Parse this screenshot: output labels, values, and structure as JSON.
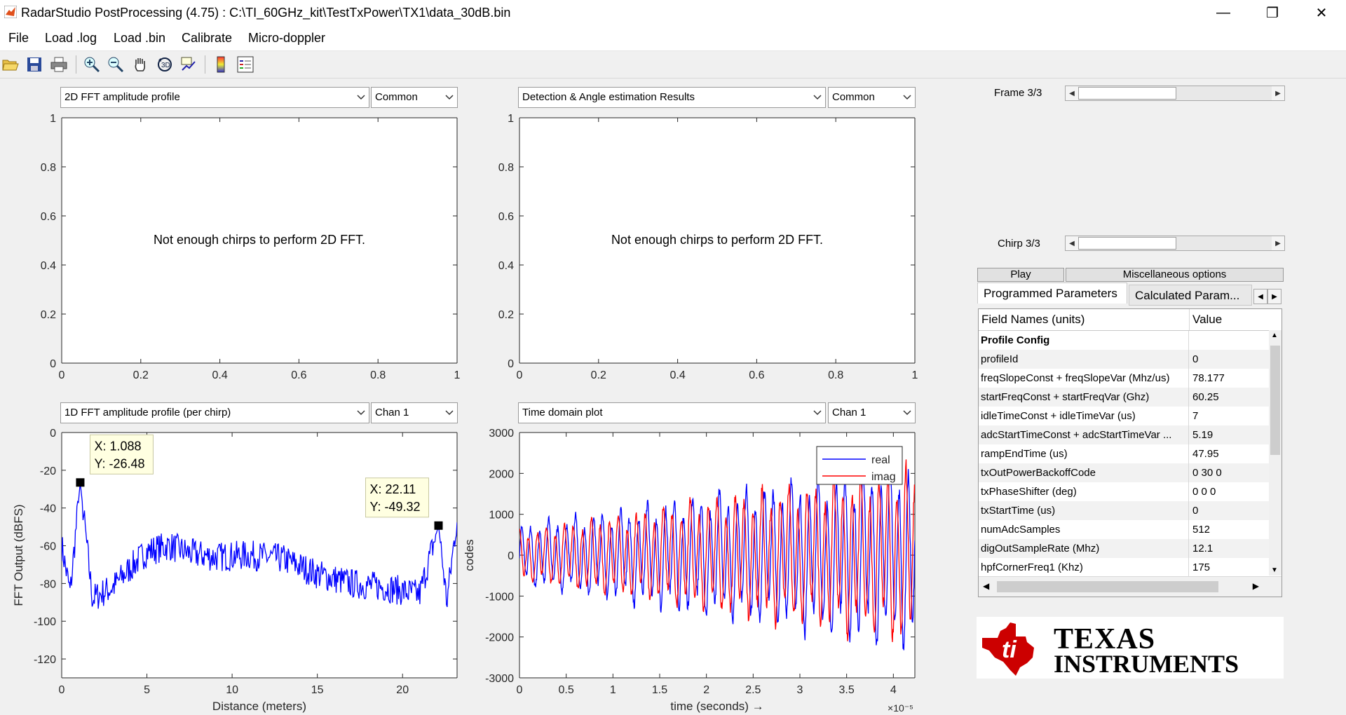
{
  "window": {
    "title": "RadarStudio PostProcessing (4.75)  : C:\\TI_60GHz_kit\\TestTxPower\\TX1\\data_30dB.bin",
    "minimize_glyph": "—",
    "maximize_glyph": "❐",
    "close_glyph": "✕"
  },
  "menu": [
    {
      "label": "File"
    },
    {
      "label": "Load .log"
    },
    {
      "label": "Load .bin"
    },
    {
      "label": "Calibrate"
    },
    {
      "label": "Micro-doppler"
    }
  ],
  "toolbar": {
    "icons": [
      "open-folder-icon",
      "save-icon",
      "print-icon",
      "zoom-in-icon",
      "zoom-out-icon",
      "pan-hand-icon",
      "rotate-3d-icon",
      "data-cursor-icon",
      "colorbar-icon",
      "legend-icon"
    ]
  },
  "panels": {
    "top_left": {
      "dropdown": "2D FFT amplitude profile",
      "dropdown2": "Common",
      "message": "Not enough chirps to perform 2D FFT."
    },
    "top_right": {
      "dropdown": "Detection & Angle estimation Results",
      "dropdown2": "Common",
      "message": "Not enough chirps to perform 2D FFT."
    },
    "bottom_left": {
      "dropdown": "1D FFT amplitude profile (per chirp)",
      "dropdown2": "Chan 1"
    },
    "bottom_right": {
      "dropdown": "Time domain plot",
      "dropdown2": "Chan 1"
    }
  },
  "controls": {
    "frame_label": "Frame 3/3",
    "frame_slider_value": 3,
    "frame_slider_max": 3,
    "chirp_label": "Chirp 3/3",
    "chirp_slider_value": 3,
    "chirp_slider_max": 3,
    "play_button": "Play",
    "misc_button": "Miscellaneous options"
  },
  "tabs": [
    {
      "label": "Programmed Parameters",
      "active": true
    },
    {
      "label": "Calculated Param..."
    }
  ],
  "table": {
    "headers": [
      "Field Names   (units)",
      "Value"
    ],
    "rows": [
      {
        "name": "Profile Config",
        "value": "",
        "section": true
      },
      {
        "name": "profileId",
        "value": "0"
      },
      {
        "name": "freqSlopeConst + freqSlopeVar (Mhz/us)",
        "value": "78.177"
      },
      {
        "name": "startFreqConst + startFreqVar (Ghz)",
        "value": "60.25"
      },
      {
        "name": "idleTimeConst + idleTimeVar (us)",
        "value": "7"
      },
      {
        "name": "adcStartTimeConst + adcStartTimeVar ...",
        "value": "5.19"
      },
      {
        "name": "rampEndTime (us)",
        "value": "47.95"
      },
      {
        "name": "txOutPowerBackoffCode",
        "value": "0 30 0"
      },
      {
        "name": "txPhaseShifter (deg)",
        "value": "0 0 0"
      },
      {
        "name": "txStartTime (us)",
        "value": "0"
      },
      {
        "name": "numAdcSamples",
        "value": "512"
      },
      {
        "name": "digOutSampleRate (Mhz)",
        "value": "12.1"
      },
      {
        "name": "hpfCornerFreq1 (Khz)",
        "value": "175"
      }
    ]
  },
  "logo": {
    "line1": "TEXAS",
    "line2": "INSTRUMENTS",
    "color": "#cc0000"
  },
  "chart_data": [
    {
      "type": "line",
      "title": "",
      "xlim": [
        0,
        1
      ],
      "ylim": [
        0,
        1
      ],
      "xticks": [
        "0",
        "0.2",
        "0.4",
        "0.6",
        "0.8",
        "1"
      ],
      "yticks": [
        "0",
        "0.2",
        "0.4",
        "0.6",
        "0.8",
        "1"
      ],
      "series": []
    },
    {
      "type": "line",
      "title": "",
      "xlim": [
        0,
        1
      ],
      "ylim": [
        0,
        1
      ],
      "xticks": [
        "0",
        "0.2",
        "0.4",
        "0.6",
        "0.8",
        "1"
      ],
      "yticks": [
        "0",
        "0.2",
        "0.4",
        "0.6",
        "0.8",
        "1"
      ],
      "series": []
    },
    {
      "type": "line",
      "xlabel": "Distance (meters)",
      "ylabel": "FFT Output (dBFS)",
      "xlim": [
        0,
        23.2
      ],
      "ylim": [
        -130,
        0
      ],
      "xticks": [
        "0",
        "5",
        "10",
        "15",
        "20"
      ],
      "xtick_values": [
        0,
        5,
        10,
        15,
        20
      ],
      "yticks": [
        "0",
        "-20",
        "-40",
        "-60",
        "-80",
        "-100",
        "-120"
      ],
      "ytick_values": [
        0,
        -20,
        -40,
        -60,
        -80,
        -100,
        -120
      ],
      "color": "#0000ff",
      "datatips": [
        {
          "x": 1.088,
          "y": -26.48,
          "label_x": "X: 1.088",
          "label_y": "Y: -26.48"
        },
        {
          "x": 22.11,
          "y": -49.32,
          "label_x": "X: 22.11",
          "label_y": "Y: -49.32"
        }
      ],
      "envelope": [
        {
          "x": 0,
          "y": -60
        },
        {
          "x": 0.5,
          "y": -85
        },
        {
          "x": 1.088,
          "y": -26.48
        },
        {
          "x": 1.8,
          "y": -88
        },
        {
          "x": 3,
          "y": -82
        },
        {
          "x": 4,
          "y": -72
        },
        {
          "x": 5,
          "y": -63
        },
        {
          "x": 6.3,
          "y": -60
        },
        {
          "x": 7.5,
          "y": -64
        },
        {
          "x": 9,
          "y": -66
        },
        {
          "x": 11,
          "y": -65
        },
        {
          "x": 13,
          "y": -67
        },
        {
          "x": 15,
          "y": -75
        },
        {
          "x": 17,
          "y": -80
        },
        {
          "x": 19,
          "y": -82
        },
        {
          "x": 21,
          "y": -86
        },
        {
          "x": 22.11,
          "y": -49.32
        },
        {
          "x": 22.6,
          "y": -90
        },
        {
          "x": 23.2,
          "y": -45
        }
      ]
    },
    {
      "type": "line",
      "xlabel": "time  (seconds) →",
      "ylabel": "codes",
      "x_exponent": "×10⁻⁵",
      "xlim": [
        0,
        4.23
      ],
      "ylim": [
        -3000,
        3000
      ],
      "xticks": [
        "0",
        "0.5",
        "1",
        "1.5",
        "2",
        "2.5",
        "3",
        "3.5",
        "4"
      ],
      "xtick_values": [
        0,
        0.5,
        1,
        1.5,
        2,
        2.5,
        3,
        3.5,
        4
      ],
      "yticks": [
        "3000",
        "2000",
        "1000",
        "0",
        "-1000",
        "-2000",
        "-3000"
      ],
      "ytick_values": [
        3000,
        2000,
        1000,
        0,
        -1000,
        -2000,
        -3000
      ],
      "series": [
        {
          "name": "real",
          "color": "#0000ff",
          "amplitude_start": 600,
          "amplitude_end": 1900,
          "cycles": 44
        },
        {
          "name": "imag",
          "color": "#ff0000",
          "amplitude_start": 500,
          "amplitude_end": 1800,
          "cycles": 44
        }
      ]
    }
  ]
}
